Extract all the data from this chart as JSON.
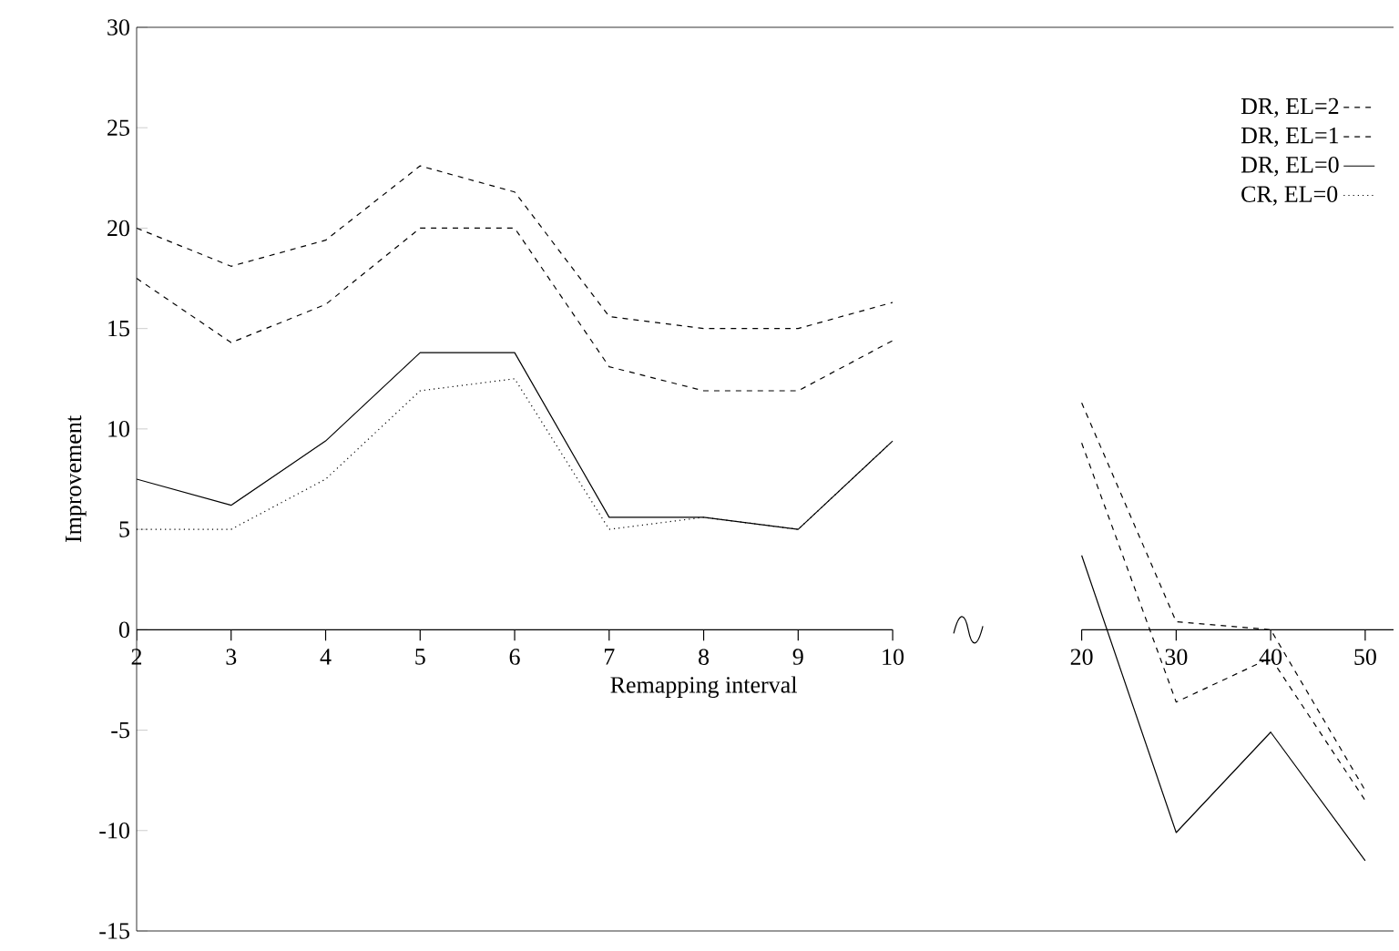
{
  "chart_data": {
    "type": "line",
    "xlabel": "Remapping interval",
    "ylabel": "Improvement",
    "categories": [
      "2",
      "3",
      "4",
      "5",
      "6",
      "7",
      "8",
      "9",
      "10",
      null,
      "20",
      "30",
      "40",
      "50"
    ],
    "ylim": [
      -15,
      30
    ],
    "yticks": [
      -15,
      -10,
      -5,
      0,
      5,
      10,
      15,
      20,
      25,
      30
    ],
    "legend": "top right",
    "series": [
      {
        "name": "DR, EL=2",
        "color": "#000000",
        "line_style": "dashed",
        "values": [
          20,
          18.1,
          19.4,
          23.1,
          21.8,
          15.6,
          15.0,
          15.0,
          16.3,
          null,
          11.3,
          0.4,
          0,
          -8
        ]
      },
      {
        "name": "DR, EL=1",
        "color": "#000000",
        "line_style": "dashed",
        "values": [
          17.5,
          14.3,
          16.2,
          20,
          20,
          13.1,
          11.9,
          11.9,
          14.4,
          null,
          9.3,
          -3.6,
          -1.4,
          -8.5
        ]
      },
      {
        "name": "DR, EL=0",
        "color": "#000000",
        "line_style": "solid",
        "values": [
          7.5,
          6.2,
          9.4,
          13.8,
          13.8,
          5.6,
          5.6,
          5.0,
          9.4,
          null,
          3.7,
          -10.1,
          -5.1,
          -11.5
        ]
      },
      {
        "name": "CR, EL=0",
        "color": "#000000",
        "line_style": "dotted",
        "values": [
          5,
          5,
          7.5,
          11.9,
          12.5,
          5.0,
          5.6,
          5.0,
          9.4,
          null,
          null,
          null,
          null,
          null
        ]
      }
    ]
  }
}
